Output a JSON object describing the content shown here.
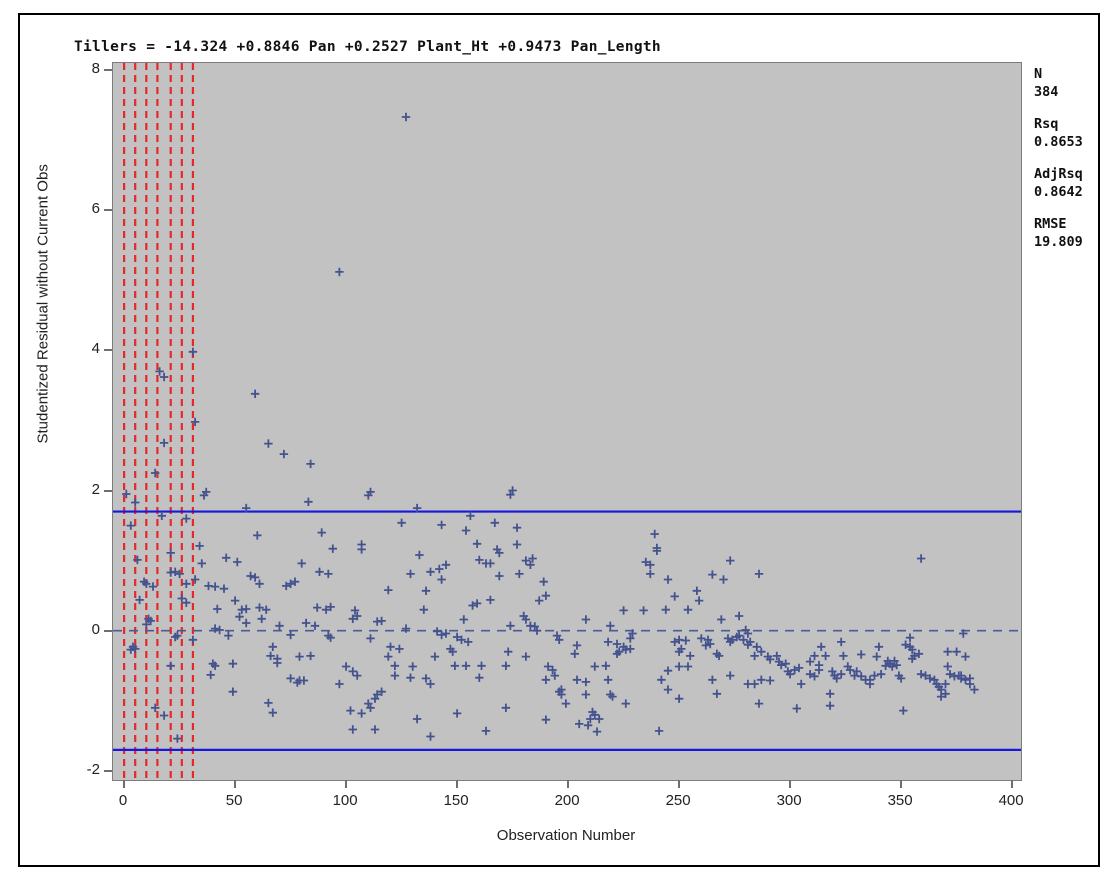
{
  "stats": {
    "n_label": "N",
    "n_value": "384",
    "rsq_label": "Rsq",
    "rsq_value": "0.8653",
    "adjrsq_label": "AdjRsq",
    "adjrsq_value": "0.8642",
    "rmse_label": "RMSE",
    "rmse_value": "19.809"
  },
  "chart_data": {
    "type": "scatter",
    "title": "Tillers = -14.324 +0.8846 Pan +0.2527 Plant_Ht +0.9473 Pan_Length",
    "xlabel": "Observation Number",
    "ylabel": "Studentized Residual without Current Obs",
    "x_ticks": [
      0,
      50,
      100,
      150,
      200,
      250,
      300,
      350,
      400
    ],
    "y_ticks": [
      8,
      6,
      4,
      2,
      0,
      -2
    ],
    "x_range": [
      -5,
      404
    ],
    "y_range": [
      -2.13,
      8.1
    ],
    "legend": "none",
    "grid": "off",
    "marker": "plus",
    "reference_lines": {
      "solid_y": [
        1.7,
        -1.7
      ],
      "dashed_y": 0,
      "red_dashed_x": [
        0,
        5,
        10,
        15,
        21,
        26,
        31
      ]
    },
    "colors": {
      "marker": "#44538e",
      "plot_background": "#c2c2c2",
      "solid_ref": "#1717dd",
      "zero_ref": "#4a5a96",
      "red_ref": "#e62828",
      "tick": "#6e6e6e",
      "text": "#111111"
    },
    "points": [
      [
        127,
        7.33
      ],
      [
        97,
        5.12
      ],
      [
        31,
        3.98
      ],
      [
        16,
        3.7
      ],
      [
        18,
        3.62
      ],
      [
        59,
        3.38
      ],
      [
        32,
        2.98
      ],
      [
        18,
        2.68
      ],
      [
        65,
        2.67
      ],
      [
        72,
        2.52
      ],
      [
        84,
        2.38
      ],
      [
        14,
        2.25
      ],
      [
        1,
        1.95
      ],
      [
        37,
        1.98
      ],
      [
        111,
        1.98
      ],
      [
        175,
        2.0
      ],
      [
        36,
        1.93
      ],
      [
        5,
        1.83
      ],
      [
        83,
        1.84
      ],
      [
        55,
        1.75
      ],
      [
        17,
        1.64
      ],
      [
        28,
        1.6
      ],
      [
        3,
        1.5
      ],
      [
        60,
        1.36
      ],
      [
        89,
        1.4
      ],
      [
        34,
        1.21
      ],
      [
        21,
        1.11
      ],
      [
        94,
        1.17
      ],
      [
        6,
        1.01
      ],
      [
        35,
        0.96
      ],
      [
        46,
        1.04
      ],
      [
        51,
        0.98
      ],
      [
        80,
        0.96
      ],
      [
        88,
        0.84
      ],
      [
        92,
        0.81
      ],
      [
        21,
        0.83
      ],
      [
        23,
        0.84
      ],
      [
        25,
        0.81
      ],
      [
        9,
        0.7
      ],
      [
        10,
        0.67
      ],
      [
        13,
        0.63
      ],
      [
        28,
        0.67
      ],
      [
        32,
        0.73
      ],
      [
        38,
        0.64
      ],
      [
        41,
        0.63
      ],
      [
        45,
        0.6
      ],
      [
        57,
        0.78
      ],
      [
        59,
        0.76
      ],
      [
        61,
        0.67
      ],
      [
        73,
        0.64
      ],
      [
        75,
        0.67
      ],
      [
        77,
        0.7
      ],
      [
        7,
        0.44
      ],
      [
        26,
        0.46
      ],
      [
        28,
        0.4
      ],
      [
        42,
        0.31
      ],
      [
        50,
        0.43
      ],
      [
        53,
        0.3
      ],
      [
        55,
        0.31
      ],
      [
        61,
        0.33
      ],
      [
        62,
        0.17
      ],
      [
        64,
        0.3
      ],
      [
        87,
        0.33
      ],
      [
        91,
        0.3
      ],
      [
        93,
        0.34
      ],
      [
        11,
        0.17
      ],
      [
        12,
        0.14
      ],
      [
        10,
        0.09
      ],
      [
        52,
        0.2
      ],
      [
        55,
        0.11
      ],
      [
        70,
        0.07
      ],
      [
        82,
        0.11
      ],
      [
        86,
        0.07
      ],
      [
        41,
        0.03
      ],
      [
        43,
        0.01
      ],
      [
        47,
        -0.07
      ],
      [
        23,
        -0.09
      ],
      [
        24,
        -0.07
      ],
      [
        31,
        -0.13
      ],
      [
        92,
        -0.07
      ],
      [
        93,
        -0.1
      ],
      [
        75,
        -0.06
      ],
      [
        4,
        -0.23
      ],
      [
        5,
        -0.26
      ],
      [
        3,
        -0.27
      ],
      [
        67,
        -0.23
      ],
      [
        66,
        -0.36
      ],
      [
        69,
        -0.4
      ],
      [
        69,
        -0.46
      ],
      [
        79,
        -0.37
      ],
      [
        84,
        -0.36
      ],
      [
        21,
        -0.5
      ],
      [
        40,
        -0.47
      ],
      [
        41,
        -0.5
      ],
      [
        49,
        -0.47
      ],
      [
        39,
        -0.63
      ],
      [
        75,
        -0.68
      ],
      [
        78,
        -0.74
      ],
      [
        79,
        -0.71
      ],
      [
        81,
        -0.71
      ],
      [
        97,
        -0.76
      ],
      [
        49,
        -0.87
      ],
      [
        65,
        -1.03
      ],
      [
        67,
        -1.17
      ],
      [
        14,
        -1.1
      ],
      [
        18,
        -1.21
      ],
      [
        24,
        -1.54
      ],
      [
        110,
        1.93
      ],
      [
        132,
        1.75
      ],
      [
        156,
        1.64
      ],
      [
        174,
        1.94
      ],
      [
        125,
        1.54
      ],
      [
        143,
        1.51
      ],
      [
        167,
        1.54
      ],
      [
        177,
        1.47
      ],
      [
        154,
        1.43
      ],
      [
        107,
        1.23
      ],
      [
        107,
        1.16
      ],
      [
        159,
        1.24
      ],
      [
        177,
        1.23
      ],
      [
        168,
        1.16
      ],
      [
        169,
        1.11
      ],
      [
        133,
        1.08
      ],
      [
        160,
        1.01
      ],
      [
        163,
        0.96
      ],
      [
        165,
        0.96
      ],
      [
        145,
        0.94
      ],
      [
        181,
        1.0
      ],
      [
        184,
        1.03
      ],
      [
        183,
        0.94
      ],
      [
        129,
        0.81
      ],
      [
        138,
        0.84
      ],
      [
        142,
        0.88
      ],
      [
        143,
        0.73
      ],
      [
        169,
        0.78
      ],
      [
        178,
        0.81
      ],
      [
        189,
        0.7
      ],
      [
        119,
        0.58
      ],
      [
        136,
        0.57
      ],
      [
        190,
        0.5
      ],
      [
        187,
        0.43
      ],
      [
        157,
        0.36
      ],
      [
        159,
        0.39
      ],
      [
        165,
        0.44
      ],
      [
        135,
        0.3
      ],
      [
        104,
        0.29
      ],
      [
        105,
        0.21
      ],
      [
        103,
        0.17
      ],
      [
        153,
        0.16
      ],
      [
        114,
        0.13
      ],
      [
        116,
        0.14
      ],
      [
        127,
        0.03
      ],
      [
        174,
        0.07
      ],
      [
        180,
        0.21
      ],
      [
        181,
        0.16
      ],
      [
        183,
        0.07
      ],
      [
        185,
        0.06
      ],
      [
        186,
        0.0
      ],
      [
        141,
        -0.01
      ],
      [
        143,
        -0.06
      ],
      [
        145,
        -0.04
      ],
      [
        150,
        -0.09
      ],
      [
        152,
        -0.13
      ],
      [
        155,
        -0.16
      ],
      [
        111,
        -0.11
      ],
      [
        195,
        -0.07
      ],
      [
        196,
        -0.13
      ],
      [
        120,
        -0.23
      ],
      [
        124,
        -0.26
      ],
      [
        147,
        -0.26
      ],
      [
        148,
        -0.3
      ],
      [
        140,
        -0.37
      ],
      [
        173,
        -0.3
      ],
      [
        181,
        -0.37
      ],
      [
        119,
        -0.37
      ],
      [
        122,
        -0.5
      ],
      [
        130,
        -0.51
      ],
      [
        149,
        -0.5
      ],
      [
        154,
        -0.5
      ],
      [
        161,
        -0.5
      ],
      [
        172,
        -0.5
      ],
      [
        100,
        -0.51
      ],
      [
        103,
        -0.58
      ],
      [
        105,
        -0.64
      ],
      [
        122,
        -0.64
      ],
      [
        129,
        -0.67
      ],
      [
        136,
        -0.68
      ],
      [
        138,
        -0.76
      ],
      [
        160,
        -0.67
      ],
      [
        190,
        -0.7
      ],
      [
        191,
        -0.51
      ],
      [
        193,
        -0.56
      ],
      [
        194,
        -0.64
      ],
      [
        197,
        -0.84
      ],
      [
        196,
        -0.87
      ],
      [
        197,
        -0.91
      ],
      [
        199,
        -1.04
      ],
      [
        113,
        -0.97
      ],
      [
        114,
        -0.91
      ],
      [
        116,
        -0.87
      ],
      [
        110,
        -1.04
      ],
      [
        111,
        -1.1
      ],
      [
        102,
        -1.14
      ],
      [
        107,
        -1.18
      ],
      [
        150,
        -1.18
      ],
      [
        132,
        -1.26
      ],
      [
        172,
        -1.1
      ],
      [
        190,
        -1.27
      ],
      [
        103,
        -1.41
      ],
      [
        113,
        -1.41
      ],
      [
        163,
        -1.43
      ],
      [
        138,
        -1.51
      ],
      [
        239,
        1.38
      ],
      [
        240,
        1.18
      ],
      [
        240,
        1.14
      ],
      [
        235,
        0.98
      ],
      [
        237,
        0.94
      ],
      [
        237,
        0.81
      ],
      [
        273,
        1.0
      ],
      [
        245,
        0.73
      ],
      [
        265,
        0.8
      ],
      [
        270,
        0.73
      ],
      [
        286,
        0.81
      ],
      [
        248,
        0.49
      ],
      [
        258,
        0.57
      ],
      [
        259,
        0.43
      ],
      [
        225,
        0.29
      ],
      [
        234,
        0.29
      ],
      [
        244,
        0.3
      ],
      [
        254,
        0.3
      ],
      [
        208,
        0.16
      ],
      [
        269,
        0.16
      ],
      [
        277,
        0.21
      ],
      [
        219,
        0.07
      ],
      [
        280,
        0.01
      ],
      [
        281,
        -0.04
      ],
      [
        229,
        -0.04
      ],
      [
        228,
        -0.11
      ],
      [
        218,
        -0.16
      ],
      [
        222,
        -0.19
      ],
      [
        225,
        -0.23
      ],
      [
        226,
        -0.27
      ],
      [
        228,
        -0.26
      ],
      [
        223,
        -0.3
      ],
      [
        222,
        -0.33
      ],
      [
        204,
        -0.21
      ],
      [
        203,
        -0.33
      ],
      [
        248,
        -0.16
      ],
      [
        250,
        -0.13
      ],
      [
        253,
        -0.14
      ],
      [
        251,
        -0.26
      ],
      [
        250,
        -0.3
      ],
      [
        255,
        -0.36
      ],
      [
        260,
        -0.11
      ],
      [
        263,
        -0.13
      ],
      [
        262,
        -0.21
      ],
      [
        264,
        -0.19
      ],
      [
        267,
        -0.33
      ],
      [
        268,
        -0.36
      ],
      [
        272,
        -0.11
      ],
      [
        273,
        -0.16
      ],
      [
        274,
        -0.13
      ],
      [
        276,
        -0.09
      ],
      [
        277,
        -0.07
      ],
      [
        279,
        -0.13
      ],
      [
        281,
        -0.2
      ],
      [
        282,
        -0.16
      ],
      [
        285,
        -0.23
      ],
      [
        287,
        -0.3
      ],
      [
        284,
        -0.36
      ],
      [
        212,
        -0.51
      ],
      [
        217,
        -0.5
      ],
      [
        245,
        -0.57
      ],
      [
        250,
        -0.51
      ],
      [
        254,
        -0.51
      ],
      [
        290,
        -0.37
      ],
      [
        291,
        -0.41
      ],
      [
        294,
        -0.36
      ],
      [
        295,
        -0.44
      ],
      [
        296,
        -0.49
      ],
      [
        298,
        -0.47
      ],
      [
        204,
        -0.7
      ],
      [
        208,
        -0.73
      ],
      [
        218,
        -0.7
      ],
      [
        242,
        -0.7
      ],
      [
        245,
        -0.84
      ],
      [
        250,
        -0.97
      ],
      [
        265,
        -0.7
      ],
      [
        267,
        -0.9
      ],
      [
        273,
        -0.64
      ],
      [
        281,
        -0.76
      ],
      [
        284,
        -0.76
      ],
      [
        287,
        -0.7
      ],
      [
        291,
        -0.71
      ],
      [
        299,
        -0.58
      ],
      [
        300,
        -0.62
      ],
      [
        302,
        -0.56
      ],
      [
        304,
        -0.53
      ],
      [
        305,
        -0.76
      ],
      [
        208,
        -0.91
      ],
      [
        219,
        -0.91
      ],
      [
        220,
        -0.94
      ],
      [
        226,
        -1.04
      ],
      [
        211,
        -1.16
      ],
      [
        212,
        -1.2
      ],
      [
        210,
        -1.26
      ],
      [
        214,
        -1.26
      ],
      [
        205,
        -1.33
      ],
      [
        209,
        -1.35
      ],
      [
        213,
        -1.44
      ],
      [
        241,
        -1.43
      ],
      [
        286,
        -1.04
      ],
      [
        303,
        -1.11
      ],
      [
        359,
        1.03
      ],
      [
        378,
        -0.04
      ],
      [
        354,
        -0.1
      ],
      [
        323,
        -0.16
      ],
      [
        314,
        -0.23
      ],
      [
        316,
        -0.36
      ],
      [
        311,
        -0.36
      ],
      [
        309,
        -0.44
      ],
      [
        313,
        -0.49
      ],
      [
        324,
        -0.36
      ],
      [
        332,
        -0.34
      ],
      [
        340,
        -0.23
      ],
      [
        339,
        -0.37
      ],
      [
        343,
        -0.5
      ],
      [
        344,
        -0.43
      ],
      [
        345,
        -0.47
      ],
      [
        346,
        -0.51
      ],
      [
        347,
        -0.43
      ],
      [
        348,
        -0.49
      ],
      [
        352,
        -0.2
      ],
      [
        354,
        -0.23
      ],
      [
        355,
        -0.27
      ],
      [
        356,
        -0.36
      ],
      [
        358,
        -0.33
      ],
      [
        355,
        -0.4
      ],
      [
        309,
        -0.62
      ],
      [
        311,
        -0.65
      ],
      [
        313,
        -0.56
      ],
      [
        319,
        -0.58
      ],
      [
        320,
        -0.64
      ],
      [
        321,
        -0.68
      ],
      [
        323,
        -0.62
      ],
      [
        326,
        -0.51
      ],
      [
        327,
        -0.56
      ],
      [
        329,
        -0.64
      ],
      [
        330,
        -0.58
      ],
      [
        332,
        -0.65
      ],
      [
        334,
        -0.7
      ],
      [
        336,
        -0.76
      ],
      [
        336,
        -0.7
      ],
      [
        338,
        -0.64
      ],
      [
        341,
        -0.62
      ],
      [
        349,
        -0.64
      ],
      [
        350,
        -0.68
      ],
      [
        359,
        -0.62
      ],
      [
        361,
        -0.64
      ],
      [
        363,
        -0.68
      ],
      [
        365,
        -0.7
      ],
      [
        366,
        -0.76
      ],
      [
        367,
        -0.8
      ],
      [
        368,
        -0.84
      ],
      [
        370,
        -0.76
      ],
      [
        370,
        -0.9
      ],
      [
        368,
        -0.94
      ],
      [
        371,
        -0.51
      ],
      [
        372,
        -0.62
      ],
      [
        374,
        -0.65
      ],
      [
        376,
        -0.64
      ],
      [
        377,
        -0.68
      ],
      [
        377,
        -0.64
      ],
      [
        379,
        -0.7
      ],
      [
        381,
        -0.76
      ],
      [
        381,
        -0.68
      ],
      [
        383,
        -0.84
      ],
      [
        371,
        -0.3
      ],
      [
        375,
        -0.3
      ],
      [
        379,
        -0.37
      ],
      [
        318,
        -0.9
      ],
      [
        318,
        -1.07
      ],
      [
        351,
        -1.14
      ]
    ]
  }
}
